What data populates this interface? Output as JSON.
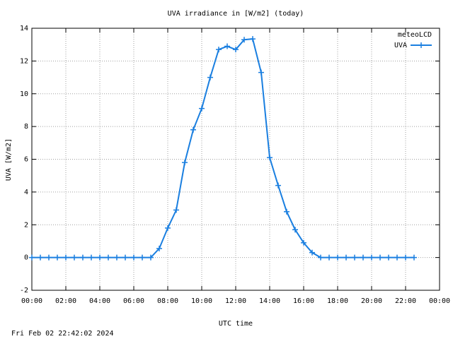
{
  "chart_data": {
    "type": "line",
    "title": "UVA irradiance in [W/m2] (today)",
    "x_label": "UTC time",
    "y_label": "UVA [W/m2]",
    "legend_title": "meteoLCD",
    "legend_position": "top-right",
    "timestamp": "Fri Feb 02 22:42:02 2024",
    "grid": true,
    "x": [
      0,
      0.5,
      1,
      1.5,
      2,
      2.5,
      3,
      3.5,
      4,
      4.5,
      5,
      5.5,
      6,
      6.5,
      7,
      7.5,
      8,
      8.5,
      9,
      9.5,
      10,
      10.5,
      11,
      11.5,
      12,
      12.5,
      13,
      13.5,
      14,
      14.5,
      15,
      15.5,
      16,
      16.5,
      17,
      17.5,
      18,
      18.5,
      19,
      19.5,
      20,
      20.5,
      21,
      21.5,
      22,
      22.5
    ],
    "series": [
      {
        "name": "UVA",
        "color": "#1a7fe0",
        "values": [
          0,
          0,
          0,
          0,
          0,
          0,
          0,
          0,
          0,
          0,
          0,
          0,
          0,
          0,
          0,
          0.55,
          1.8,
          2.9,
          5.8,
          7.8,
          9.1,
          11.0,
          12.7,
          12.9,
          12.7,
          13.3,
          13.35,
          11.3,
          6.1,
          4.4,
          2.8,
          1.7,
          0.9,
          0.3,
          0,
          0,
          0,
          0,
          0,
          0,
          0,
          0,
          0,
          0,
          0,
          0
        ]
      }
    ],
    "xlim": [
      0,
      24
    ],
    "xticks": [
      {
        "value": 0,
        "label": "00:00"
      },
      {
        "value": 2,
        "label": "02:00"
      },
      {
        "value": 4,
        "label": "04:00"
      },
      {
        "value": 6,
        "label": "06:00"
      },
      {
        "value": 8,
        "label": "08:00"
      },
      {
        "value": 10,
        "label": "10:00"
      },
      {
        "value": 12,
        "label": "12:00"
      },
      {
        "value": 14,
        "label": "14:00"
      },
      {
        "value": 16,
        "label": "16:00"
      },
      {
        "value": 18,
        "label": "18:00"
      },
      {
        "value": 20,
        "label": "20:00"
      },
      {
        "value": 22,
        "label": "22:00"
      },
      {
        "value": 24,
        "label": "00:00"
      }
    ],
    "ylim": [
      -2,
      14
    ],
    "yticks": [
      -2,
      0,
      2,
      4,
      6,
      8,
      10,
      12,
      14
    ]
  }
}
